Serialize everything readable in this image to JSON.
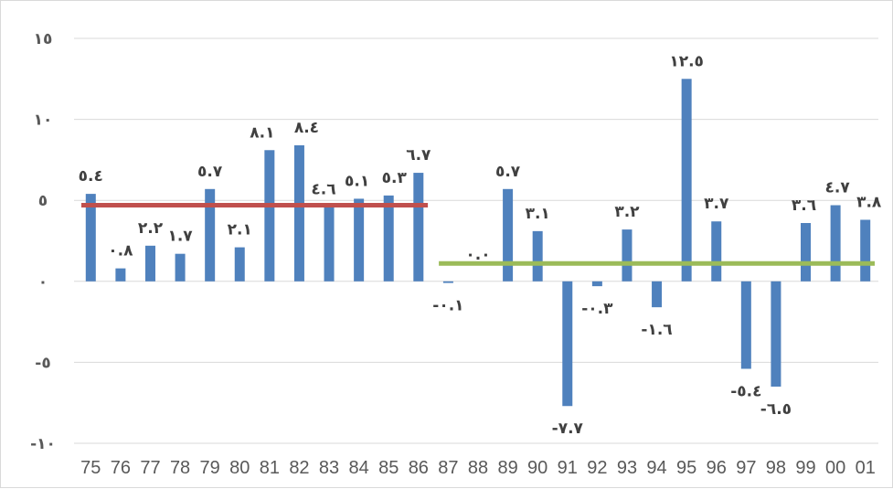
{
  "chart_data": {
    "type": "bar",
    "title": "",
    "xlabel": "",
    "ylabel": "",
    "ylim": [
      -10,
      15
    ],
    "grid": true,
    "yticks": [
      15,
      10,
      5,
      0,
      -5,
      -10
    ],
    "ytick_labels": [
      "١٥",
      "١٠",
      "٥",
      "٠",
      "-٥",
      "-١٠"
    ],
    "categories": [
      "75",
      "76",
      "77",
      "78",
      "79",
      "80",
      "81",
      "82",
      "83",
      "84",
      "85",
      "86",
      "87",
      "88",
      "89",
      "90",
      "91",
      "92",
      "93",
      "94",
      "95",
      "96",
      "97",
      "98",
      "99",
      "00",
      "01"
    ],
    "values": [
      5.4,
      0.8,
      2.2,
      1.7,
      5.7,
      2.1,
      8.1,
      8.4,
      4.6,
      5.1,
      5.3,
      6.7,
      -0.1,
      0.0,
      5.7,
      3.1,
      -7.7,
      -0.3,
      3.2,
      -1.6,
      12.5,
      3.7,
      -5.4,
      -6.5,
      3.6,
      4.7,
      3.8
    ],
    "data_labels": [
      "٥.٤",
      "٠.٨",
      "٢.٢",
      "١.٧",
      "٥.٧",
      "٢.١",
      "٨.١",
      "٨.٤",
      "٤.٦",
      "٥.١",
      "٥.٣",
      "٦.٧",
      "-٠.١",
      "٠.٠",
      "٥.٧",
      "٣.١",
      "-٧.٧",
      "-٠.٣",
      "٣.٢",
      "-١.٦",
      "١٢.٥",
      "٣.٧",
      "-٥.٤",
      "-٦.٥",
      "٣.٦",
      "٤.٧",
      "٣.٨"
    ],
    "bar_color": "#4f81bd",
    "reference_lines": [
      {
        "from": "75",
        "to": "86",
        "value": 4.7,
        "color": "#c0504d"
      },
      {
        "from": "87",
        "to": "01",
        "value": 1.1,
        "color": "#9bbb59"
      }
    ]
  }
}
